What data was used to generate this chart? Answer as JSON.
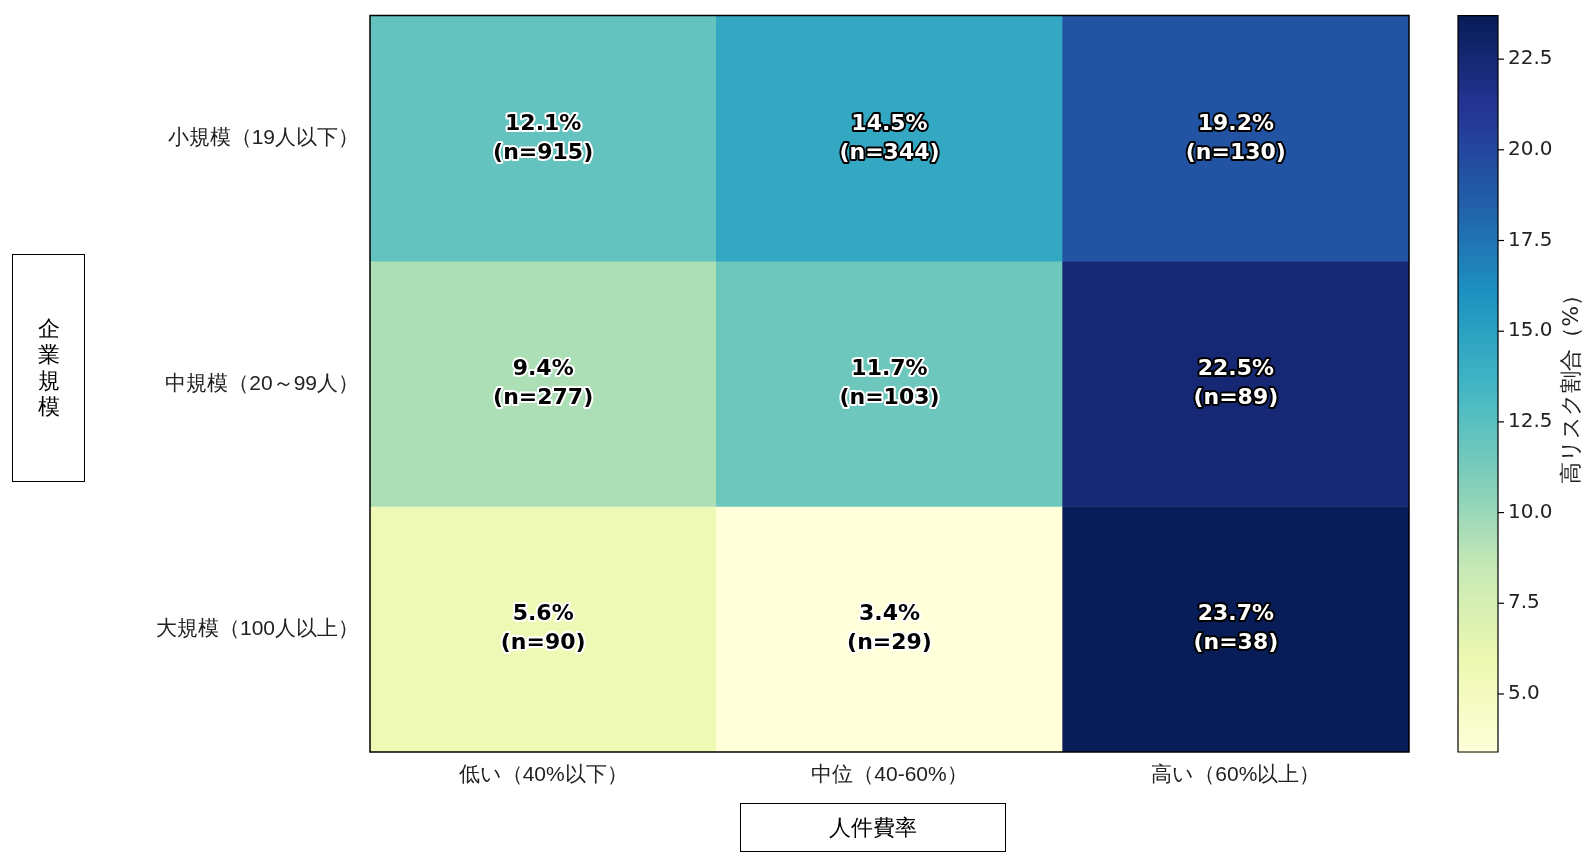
{
  "chart_data": {
    "type": "heatmap",
    "categories": [
      "低い（40%以下）",
      "中位（40-60%）",
      "高い（60%以上）"
    ],
    "y_categories": [
      "小規模（19人以下）",
      "中規模（20～99人）",
      "大規模（100人以上）"
    ],
    "cells": [
      [
        12.1,
        14.5,
        19.2
      ],
      [
        9.4,
        11.7,
        22.5
      ],
      [
        5.6,
        3.4,
        23.7
      ]
    ],
    "cell_labels": [
      [
        "12.1%\n(n=915)",
        "14.5%\n(n=344)",
        "19.2%\n(n=130)"
      ],
      [
        "9.4%\n(n=277)",
        "11.7%\n(n=103)",
        "22.5%\n(n=89)"
      ],
      [
        "5.6%\n(n=90)",
        "3.4%\n(n=29)",
        "23.7%\n(n=38)"
      ]
    ],
    "xlabel": "人件費率",
    "ylabel": "企業規模",
    "clabel": "高リスク割合（%）",
    "clim": [
      3.4,
      23.7
    ],
    "cticks": [
      {
        "value": 5,
        "label": "5.0"
      },
      {
        "value": 7.5,
        "label": "7.5"
      },
      {
        "value": 10,
        "label": "10.0"
      },
      {
        "value": 12.5,
        "label": "12.5"
      },
      {
        "value": 15,
        "label": "15.0"
      },
      {
        "value": 17.5,
        "label": "17.5"
      },
      {
        "value": 20,
        "label": "20.0"
      },
      {
        "value": 22.5,
        "label": "22.5"
      }
    ]
  }
}
